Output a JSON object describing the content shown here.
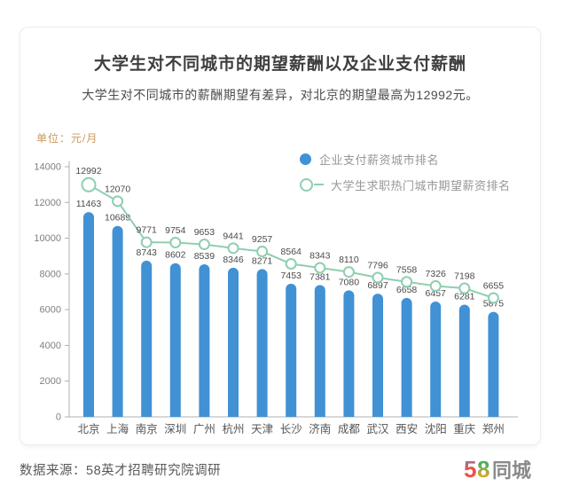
{
  "header": {
    "title": "大学生对不同城市的期望薪酬以及企业支付薪酬",
    "subtitle": "大学生对不同城市的薪酬期望有差异，对北京的期望最高为12992元。"
  },
  "unit_label": "单位：元/月",
  "legend": {
    "items": [
      {
        "label": "企业支付薪资城市排名",
        "marker": "filled-circle",
        "color": "#4191d5"
      },
      {
        "label": "大学生求职热门城市期望薪资排名",
        "marker": "open-circle-line",
        "color": "#8fceb0"
      }
    ]
  },
  "chart_data": {
    "type": "bar",
    "title": "大学生对不同城市的期望薪酬以及企业支付薪酬",
    "categories": [
      "北京",
      "上海",
      "南京",
      "深圳",
      "广州",
      "杭州",
      "天津",
      "长沙",
      "济南",
      "成都",
      "武汉",
      "西安",
      "沈阳",
      "重庆",
      "郑州"
    ],
    "series": [
      {
        "name": "企业支付薪资城市排名",
        "type": "bar",
        "color": "#4191d5",
        "values": [
          11463,
          10689,
          8743,
          8602,
          8539,
          8346,
          8271,
          7453,
          7381,
          7080,
          6897,
          6658,
          6457,
          6281,
          5875
        ]
      },
      {
        "name": "大学生求职热门城市期望薪资排名",
        "type": "line",
        "color": "#8fceb0",
        "values": [
          12992,
          12070,
          9771,
          9754,
          9653,
          9441,
          9257,
          8564,
          8343,
          8110,
          7796,
          7558,
          7326,
          7198,
          6655
        ]
      }
    ],
    "xlabel": "",
    "ylabel": "元/月",
    "ylim": [
      0,
      14000
    ],
    "yticks": [
      0,
      2000,
      4000,
      6000,
      8000,
      10000,
      12000,
      14000
    ],
    "grid": false,
    "legend_position": "top-right",
    "data_labels": true
  },
  "footer": {
    "source": "数据来源：58英才招聘研究院调研",
    "logo": {
      "number_5": "5",
      "number_8": "8",
      "name": "同城",
      "colors": {
        "five_top": "#4a9ad4",
        "five_bottom": "#ee4f4b",
        "eight_top": "#4db05a",
        "eight_bottom": "#f5a623",
        "name_color": "#8a8a8a"
      }
    }
  },
  "colors": {
    "bar": "#4191d5",
    "line": "#8fceb0",
    "unit_label": "#c99a5e",
    "axis": "#b0b0b0",
    "value_label": "#4a4a4a"
  }
}
